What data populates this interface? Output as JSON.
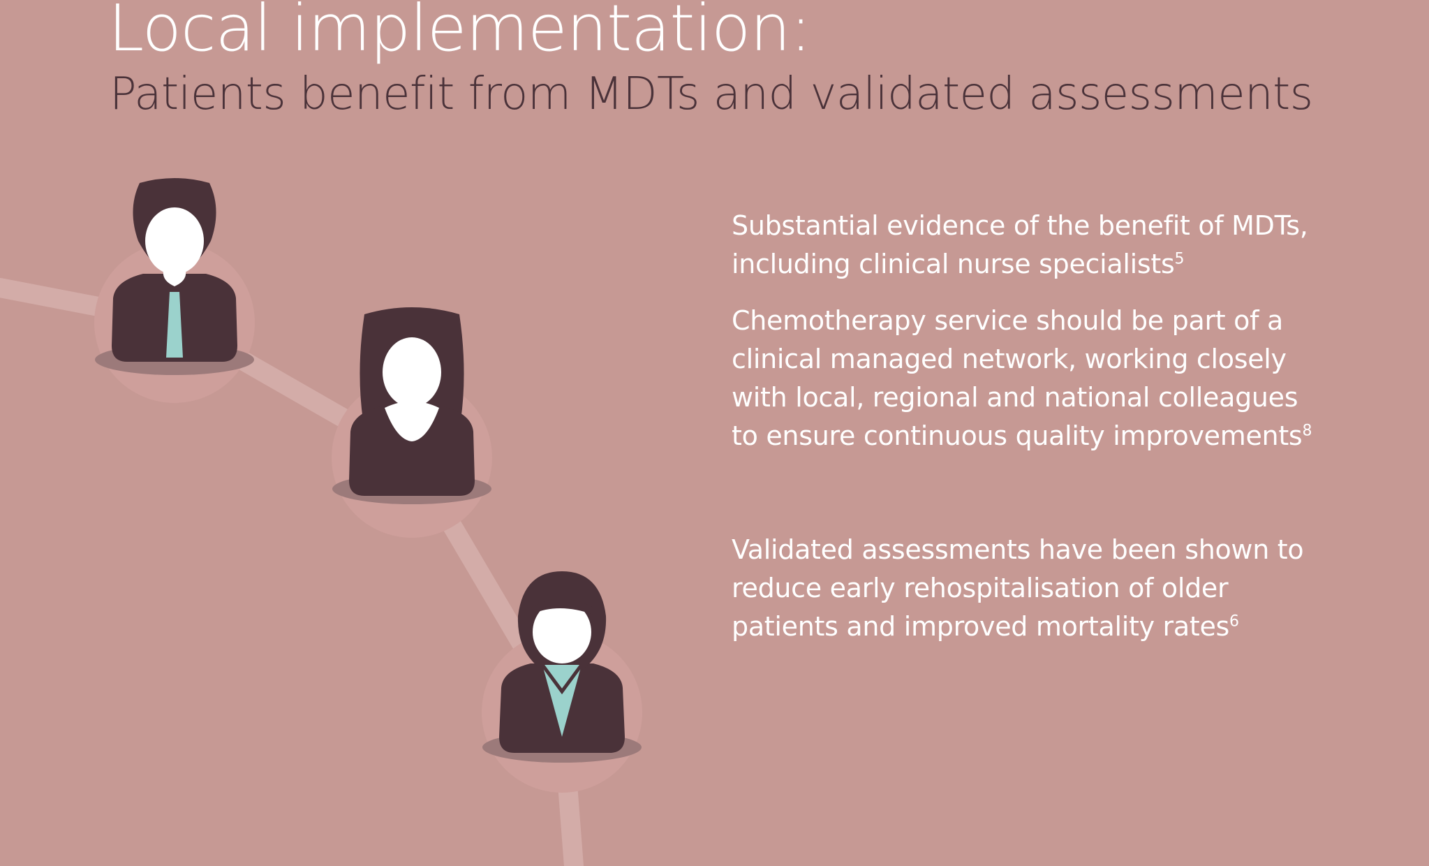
{
  "header": {
    "title": "Local implementation:",
    "subtitle": "Patients benefit from MDTs and validated assessments"
  },
  "points": [
    {
      "lines": [
        "Substantial evidence of the benefit of MDTs,",
        "including clinical nurse specialists"
      ],
      "ref": "5"
    },
    {
      "lines": [
        "Chemotherapy service should be part of a",
        "clinical managed network, working closely",
        "with local, regional and national colleagues",
        "to ensure continuous quality improvements"
      ],
      "ref": "8"
    },
    {
      "lines": [
        "Validated assessments have been shown to",
        "reduce early rehospitalisation of older",
        "patients and improved mortality rates"
      ],
      "ref": "6"
    }
  ],
  "colors": {
    "background": "#c69994",
    "figure_dark": "#4a3239",
    "connector": "#d3aca8",
    "tie_accent": "#9bd2cc",
    "text_light": "#ffffff"
  },
  "icons": [
    "man-with-tie-icon",
    "woman-long-hair-icon",
    "woman-with-collar-icon"
  ]
}
